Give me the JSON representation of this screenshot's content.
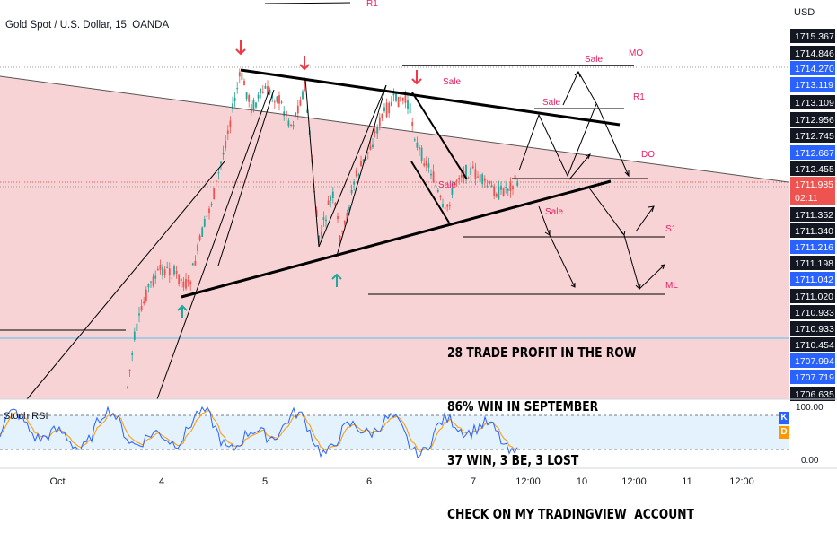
{
  "chart_title": "Gold Spot / U.S. Dollar, 15, OANDA",
  "currency": "USD",
  "colors": {
    "up": "#26a69a",
    "down": "#ef5350",
    "zone": "#f8d3d6",
    "price_blue": "#2962ff",
    "label_red": "#e91e63",
    "stoch_k": "#2962ff",
    "stoch_d": "#ff9800"
  },
  "chart_data": {
    "type": "candlestick",
    "symbol": "XAUUSD",
    "timeframe": "15",
    "x_axis_labels": [
      "Oct",
      "4",
      "5",
      "6",
      "7",
      "12:00",
      "10",
      "12:00",
      "11",
      "12:00"
    ],
    "price_scale": [
      {
        "value": "1715.367",
        "style": "dark"
      },
      {
        "value": "1714.846",
        "style": "dark"
      },
      {
        "value": "1714.270",
        "style": "blue"
      },
      {
        "value": "1713.119",
        "style": "blue"
      },
      {
        "value": "1713.109",
        "style": "dark"
      },
      {
        "value": "1712.956",
        "style": "dark"
      },
      {
        "value": "1712.745",
        "style": "dark"
      },
      {
        "value": "1712.667",
        "style": "blue"
      },
      {
        "value": "1712.455",
        "style": "dark"
      },
      {
        "value": "1711.985",
        "style": "red"
      },
      {
        "value": "02:11",
        "style": "red"
      },
      {
        "value": "1711.352",
        "style": "dark"
      },
      {
        "value": "1711.340",
        "style": "dark"
      },
      {
        "value": "1711.216",
        "style": "blue"
      },
      {
        "value": "1711.198",
        "style": "dark"
      },
      {
        "value": "1711.042",
        "style": "blue"
      },
      {
        "value": "1711.020",
        "style": "dark"
      },
      {
        "value": "1710.933",
        "style": "dark"
      },
      {
        "value": "1710.933",
        "style": "dark"
      },
      {
        "value": "1710.454",
        "style": "dark"
      },
      {
        "value": "1707.994",
        "style": "blue"
      },
      {
        "value": "1707.719",
        "style": "blue"
      },
      {
        "value": "1706.635",
        "style": "dark"
      }
    ],
    "level_labels": [
      "R1",
      "MO",
      "R1",
      "DO",
      "S1",
      "ML"
    ],
    "trade_labels": [
      "Sale",
      "Sale",
      "Sale",
      "Sale",
      "Sale"
    ],
    "indicator": {
      "name": "Stoch RSI",
      "scale": [
        "100.00",
        "0.00"
      ],
      "legend": [
        "K",
        "D"
      ]
    }
  },
  "annotation": {
    "line1": "28 TRADE PROFIT IN THE ROW",
    "line2": "86% WIN IN SEPTEMBER",
    "line3": "37 WIN, 3 BE, 3 LOST",
    "line4": "CHECK ON MY TRADINGVIEW  ACCOUNT"
  }
}
